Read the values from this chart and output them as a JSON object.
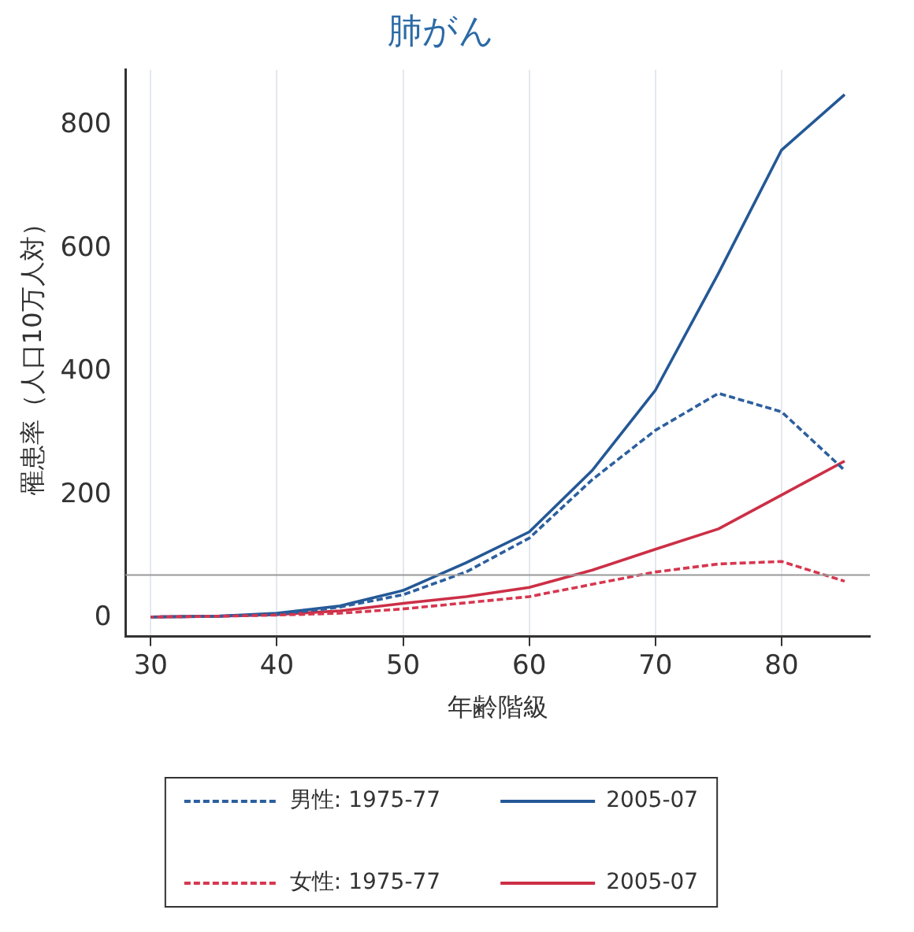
{
  "chart_data": {
    "type": "line",
    "title": "肺がん",
    "xlabel": "年齢階級",
    "ylabel": "罹患率（人口10万人対）",
    "x": [
      30,
      35,
      40,
      45,
      50,
      55,
      60,
      65,
      70,
      75,
      80,
      85
    ],
    "series": [
      {
        "name": "男性: 1975-77",
        "color": "#2c5f9e",
        "line_style": "dashed",
        "values": [
          2,
          3,
          6,
          18,
          38,
          75,
          130,
          225,
          305,
          365,
          335,
          240
        ]
      },
      {
        "name": "2005-07",
        "color": "#245896",
        "line_style": "solid",
        "values": [
          2,
          3,
          8,
          20,
          45,
          90,
          140,
          240,
          370,
          560,
          760,
          850
        ]
      },
      {
        "name": "女性: 1975-77",
        "color": "#d6374f",
        "line_style": "dashed",
        "values": [
          2,
          3,
          5,
          8,
          15,
          25,
          35,
          55,
          75,
          88,
          92,
          60
        ]
      },
      {
        "name": "2005-07",
        "color": "#cc2f46",
        "line_style": "solid",
        "values": [
          2,
          3,
          6,
          12,
          24,
          35,
          50,
          78,
          112,
          145,
          200,
          255
        ]
      }
    ],
    "xlim": [
      28,
      87
    ],
    "xticks": [
      30,
      40,
      50,
      60,
      70,
      80
    ],
    "ylim": [
      -30,
      890
    ],
    "yticks": [
      0,
      200,
      400,
      600,
      800
    ],
    "ref_lines": [
      {
        "axis": "y",
        "value": 70,
        "color": "#999999"
      }
    ],
    "grid": "x",
    "legend": "bottom",
    "marker": "none"
  }
}
